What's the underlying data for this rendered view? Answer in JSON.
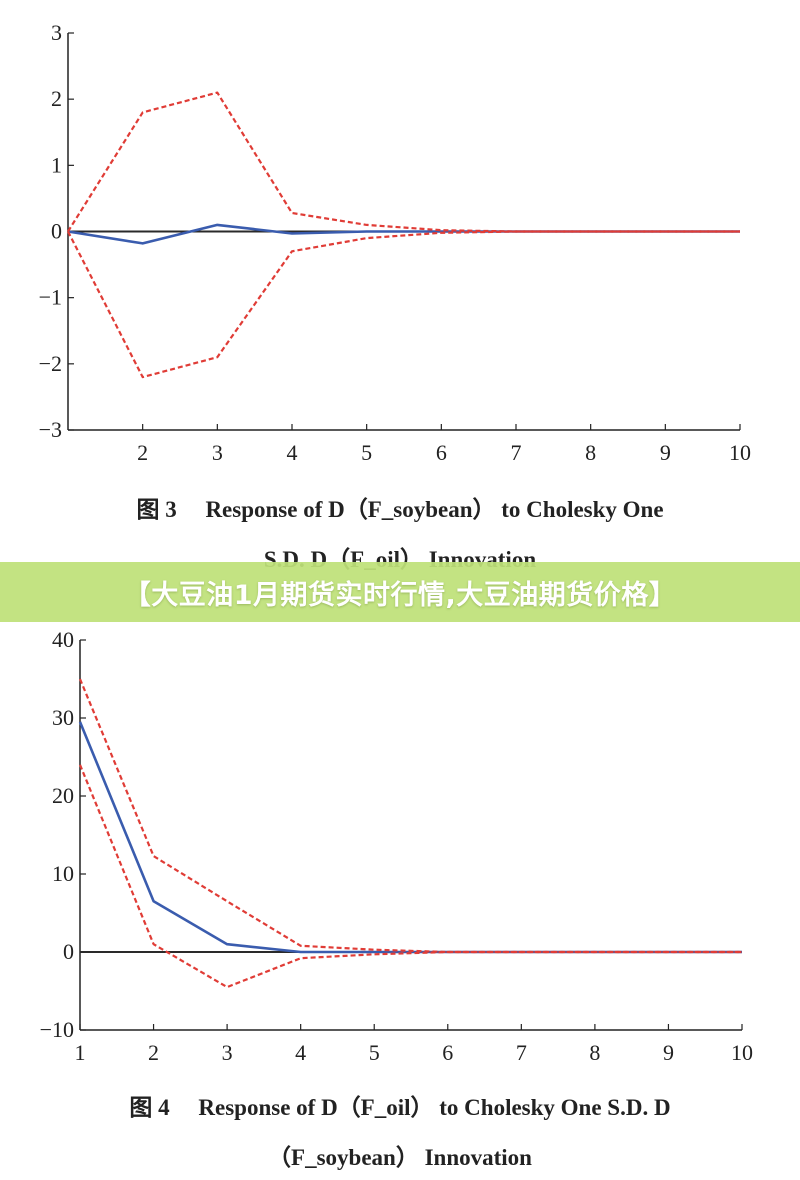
{
  "banner": {
    "text": "【大豆油1月期货实时行情,大豆油期货价格】"
  },
  "colors": {
    "irf": "#3a5cae",
    "band": "#e03c36",
    "zero": "#2a2a2a",
    "axis": "#222222"
  },
  "chart_data": [
    {
      "type": "line",
      "caption_line1": "图 3　 Response of D（F_soybean） to Cholesky One",
      "caption_line2": "S.D. D（F_oil） Innovation",
      "x": [
        1,
        2,
        3,
        4,
        5,
        6,
        7,
        8,
        9,
        10
      ],
      "xticks": [
        "2",
        "3",
        "4",
        "5",
        "6",
        "7",
        "8",
        "9",
        "10"
      ],
      "xtick_values": [
        2,
        3,
        4,
        5,
        6,
        7,
        8,
        9,
        10
      ],
      "yticks": [
        "3",
        "2",
        "1",
        "0",
        "−1",
        "−2",
        "−3"
      ],
      "ytick_values": [
        3,
        2,
        1,
        0,
        -1,
        -2,
        -3
      ],
      "xlim": [
        1,
        10
      ],
      "ylim": [
        -3,
        3
      ],
      "grid": false,
      "series": [
        {
          "role": "irf",
          "style": "solid",
          "values": [
            0,
            -0.18,
            0.1,
            -0.03,
            0.0,
            0.0,
            0.0,
            0.0,
            0.0,
            0.0
          ]
        },
        {
          "role": "upper",
          "style": "dashed",
          "values": [
            0,
            1.8,
            2.1,
            0.28,
            0.1,
            0.02,
            0.0,
            0.0,
            0.0,
            0.0
          ]
        },
        {
          "role": "lower",
          "style": "dashed",
          "values": [
            0,
            -2.2,
            -1.9,
            -0.3,
            -0.1,
            -0.02,
            0.0,
            0.0,
            0.0,
            0.0
          ]
        }
      ]
    },
    {
      "type": "line",
      "caption_line1": "图 4　 Response of D（F_oil） to Cholesky One S.D. D",
      "caption_line2": "（F_soybean） Innovation",
      "x": [
        1,
        2,
        3,
        4,
        5,
        6,
        7,
        8,
        9,
        10
      ],
      "xticks": [
        "1",
        "2",
        "3",
        "4",
        "5",
        "6",
        "7",
        "8",
        "9",
        "10"
      ],
      "xtick_values": [
        1,
        2,
        3,
        4,
        5,
        6,
        7,
        8,
        9,
        10
      ],
      "yticks": [
        "40",
        "30",
        "20",
        "10",
        "0",
        "−10"
      ],
      "ytick_values": [
        40,
        30,
        20,
        10,
        0,
        -10
      ],
      "xlim": [
        1,
        10
      ],
      "ylim": [
        -10,
        40
      ],
      "grid": false,
      "series": [
        {
          "role": "irf",
          "style": "solid",
          "values": [
            29.5,
            6.5,
            1.0,
            0.0,
            0.0,
            0.0,
            0.0,
            0.0,
            0.0,
            0.0
          ]
        },
        {
          "role": "upper",
          "style": "dashed",
          "values": [
            35.0,
            12.3,
            6.5,
            0.8,
            0.3,
            0.0,
            0.0,
            0.0,
            0.0,
            0.0
          ]
        },
        {
          "role": "lower",
          "style": "dashed",
          "values": [
            24.0,
            1.0,
            -4.5,
            -0.8,
            -0.3,
            0.0,
            0.0,
            0.0,
            0.0,
            0.0
          ]
        }
      ]
    }
  ]
}
